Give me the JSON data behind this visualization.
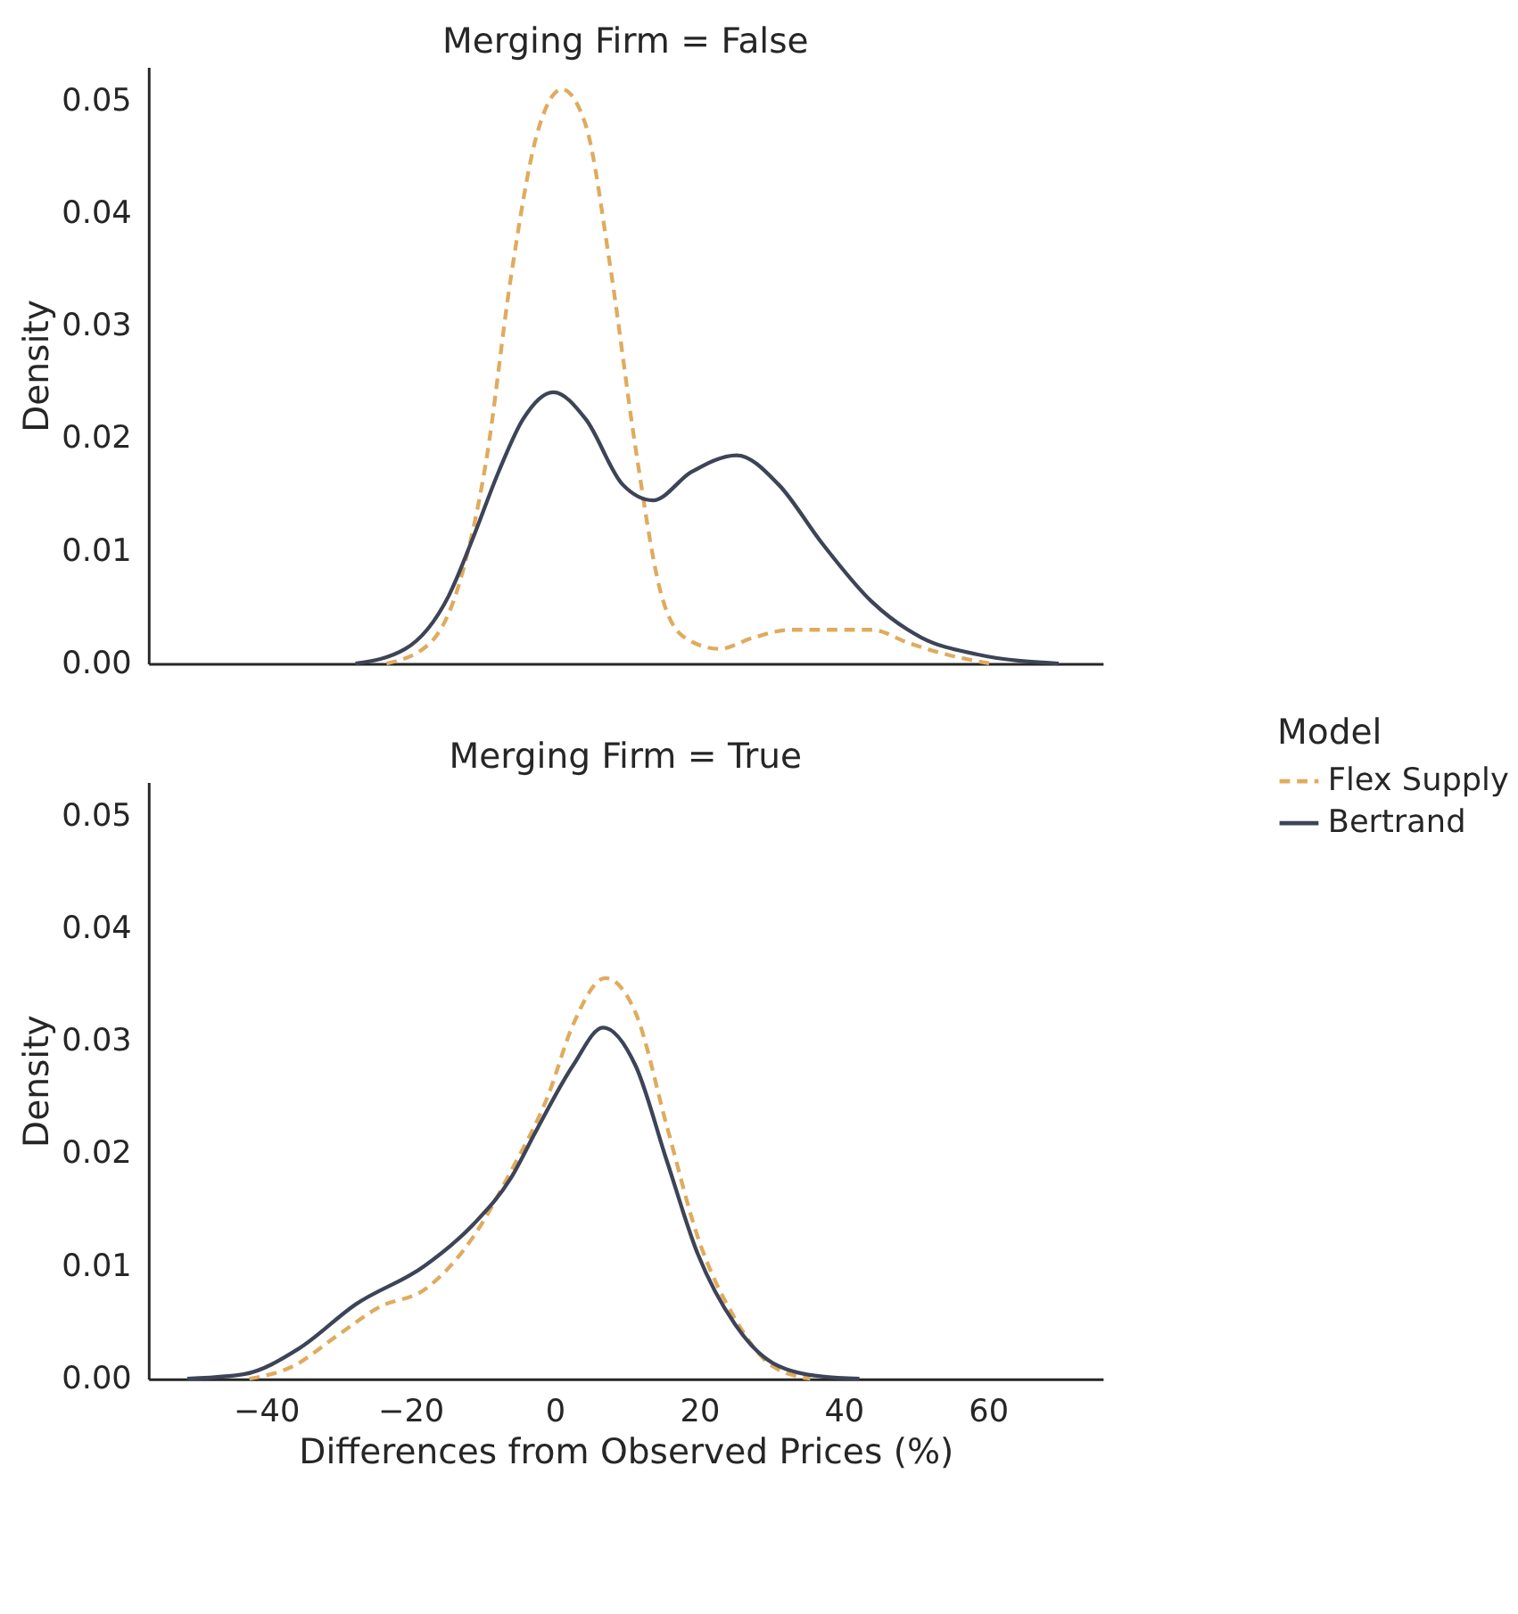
{
  "chart_data": [
    {
      "type": "line",
      "title": "Merging Firm = False",
      "ylabel": "Density",
      "xlim": [
        -56.3,
        75.9
      ],
      "xticks": [
        -40,
        -20,
        0,
        20,
        40,
        60
      ],
      "ylim": [
        0,
        0.053
      ],
      "yticks": [
        {
          "value": 0,
          "label": "0.00"
        },
        0.01,
        0.02,
        0.03,
        0.04,
        0.05
      ],
      "tick_labels": "y",
      "grid": false,
      "legend": "right",
      "legend_title": "Model",
      "series": [
        {
          "name": "Flex Supply",
          "color": "#e0ab5e",
          "line_style": "dashed",
          "x": [
            -23.3,
            -17.3,
            -13.0,
            -9.5,
            -6.1,
            -2.6,
            1.0,
            4.3,
            7.7,
            11.2,
            14.6,
            18.0,
            22.8,
            27.5,
            32.7,
            38.7,
            43.9,
            49.1,
            54.3,
            60.3
          ],
          "values": [
            0,
            0.0018,
            0.0076,
            0.018,
            0.0342,
            0.0467,
            0.051,
            0.0478,
            0.0352,
            0.0191,
            0.0065,
            0.0023,
            0.0013,
            0.0023,
            0.003,
            0.003,
            0.003,
            0.0018,
            0.0008,
            0
          ]
        },
        {
          "name": "Bertrand",
          "color": "#3d4457",
          "line_style": "solid",
          "x": [
            -27.6,
            -20.7,
            -14.7,
            -11.3,
            -7.8,
            -4.4,
            -0.2,
            4.3,
            9.4,
            13.6,
            18.9,
            25.2,
            31.0,
            37.0,
            43.9,
            50.8,
            58.6,
            69.8
          ],
          "values": [
            0,
            0.0013,
            0.006,
            0.0112,
            0.017,
            0.0217,
            0.0241,
            0.0217,
            0.0159,
            0.0145,
            0.017,
            0.0185,
            0.0159,
            0.0107,
            0.0055,
            0.0023,
            0.0008,
            0
          ]
        }
      ]
    },
    {
      "type": "line",
      "title": "Merging Firm = True",
      "xlabel": "Differences from Observed Prices (%)",
      "ylabel": "Density",
      "xlim": [
        -56.3,
        75.9
      ],
      "xticks": [
        -40,
        -20,
        0,
        20,
        40,
        60
      ],
      "ylim": [
        0,
        0.053
      ],
      "yticks": [
        {
          "value": 0,
          "label": "0.00"
        },
        0.01,
        0.02,
        0.03,
        0.04,
        0.05
      ],
      "grid": false,
      "series": [
        {
          "name": "Flex Supply",
          "color": "#e0ab5e",
          "line_style": "dashed",
          "x": [
            -42.3,
            -36.3,
            -30.2,
            -24.2,
            -18.1,
            -11.3,
            -6.1,
            -0.9,
            2.5,
            7.0,
            11.2,
            15.5,
            19.8,
            25.0,
            30.2,
            35.4
          ],
          "values": [
            0,
            0.0011,
            0.0038,
            0.0064,
            0.0079,
            0.0126,
            0.0184,
            0.0252,
            0.0314,
            0.0356,
            0.0325,
            0.0225,
            0.0126,
            0.0053,
            0.0011,
            0
          ]
        },
        {
          "name": "Bertrand",
          "color": "#3d4457",
          "line_style": "solid",
          "x": [
            -50.9,
            -43.1,
            -35.4,
            -27.6,
            -18.1,
            -11.3,
            -6.1,
            -2.6,
            2.5,
            6.7,
            11.2,
            15.5,
            19.8,
            25.0,
            30.2,
            37.0,
            42.2
          ],
          "values": [
            0,
            0.0004,
            0.0027,
            0.0066,
            0.01,
            0.0137,
            0.0178,
            0.022,
            0.0278,
            0.0312,
            0.0278,
            0.0194,
            0.0111,
            0.0048,
            0.0014,
            0.0002,
            0
          ]
        }
      ]
    }
  ]
}
